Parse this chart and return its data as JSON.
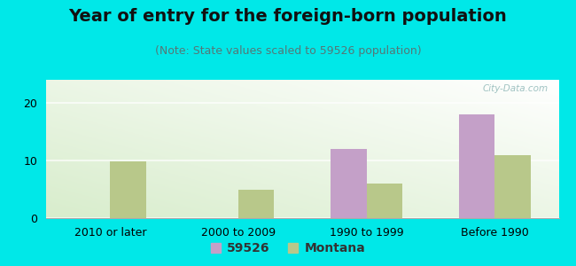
{
  "title": "Year of entry for the foreign-born population",
  "subtitle": "(Note: State values scaled to 59526 population)",
  "categories": [
    "2010 or later",
    "2000 to 2009",
    "1990 to 1999",
    "Before 1990"
  ],
  "series_59526": [
    0,
    0,
    12,
    18
  ],
  "series_montana": [
    9.8,
    5.0,
    6.0,
    11.0
  ],
  "color_59526": "#c4a0c8",
  "color_montana": "#b8c88a",
  "background_outer": "#00e8e8",
  "ylim": [
    0,
    24
  ],
  "yticks": [
    0,
    10,
    20
  ],
  "bar_width": 0.28,
  "legend_label_59526": "59526",
  "legend_label_montana": "Montana",
  "title_fontsize": 14,
  "subtitle_fontsize": 9,
  "tick_fontsize": 9,
  "legend_fontsize": 10,
  "gradient_left": "#d8edcc",
  "gradient_right": "#f8fff8",
  "watermark": "City-Data.com"
}
